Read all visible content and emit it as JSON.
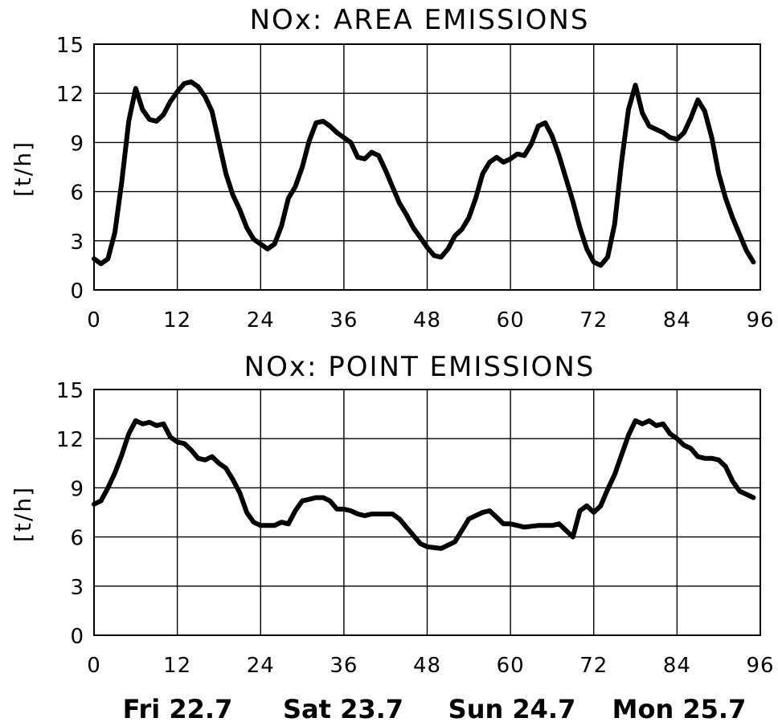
{
  "chart_data": [
    {
      "type": "line",
      "title": "NOx: AREA EMISSIONS",
      "xlabel": "",
      "ylabel": "[t/h]",
      "xlim": [
        0,
        96
      ],
      "ylim": [
        0,
        15
      ],
      "xticks": [
        "0",
        "12",
        "24",
        "36",
        "48",
        "60",
        "72",
        "84",
        "96"
      ],
      "yticks": [
        "0",
        "3",
        "6",
        "9",
        "12",
        "15"
      ],
      "grid": true,
      "series": [
        {
          "x": [
            0,
            1,
            2,
            3,
            4,
            5,
            6,
            7,
            8,
            9,
            10,
            11,
            12,
            13,
            14,
            15,
            16,
            17,
            18,
            19,
            20,
            21,
            22,
            23,
            24,
            25,
            26,
            27,
            28,
            29,
            30,
            31,
            32,
            33,
            34,
            35,
            36,
            37,
            38,
            39,
            40,
            41,
            42,
            43,
            44,
            45,
            46,
            47,
            48,
            49,
            50,
            51,
            52,
            53,
            54,
            55,
            56,
            57,
            58,
            59,
            60,
            61,
            62,
            63,
            64,
            65,
            66,
            67,
            68,
            69,
            70,
            71,
            72,
            73,
            74,
            75,
            76,
            77,
            78,
            79,
            80,
            81,
            82,
            83,
            84,
            85,
            86,
            87,
            88,
            89,
            90,
            91,
            92,
            93,
            94,
            95
          ],
          "y": [
            1.9,
            1.6,
            1.9,
            3.5,
            6.6,
            10.3,
            12.3,
            11.0,
            10.4,
            10.3,
            10.7,
            11.5,
            12.1,
            12.6,
            12.7,
            12.4,
            11.8,
            10.9,
            9.0,
            7.1,
            5.8,
            4.9,
            3.8,
            3.1,
            2.8,
            2.5,
            2.8,
            3.9,
            5.6,
            6.3,
            7.5,
            9.1,
            10.2,
            10.3,
            10.0,
            9.6,
            9.3,
            9.0,
            8.1,
            8.0,
            8.4,
            8.2,
            7.3,
            6.3,
            5.3,
            4.6,
            3.8,
            3.2,
            2.6,
            2.1,
            2.0,
            2.5,
            3.3,
            3.7,
            4.4,
            5.6,
            7.1,
            7.8,
            8.1,
            7.8,
            8.0,
            8.3,
            8.2,
            8.9,
            10.0,
            10.2,
            9.4,
            8.2,
            6.8,
            5.4,
            3.8,
            2.5,
            1.7,
            1.5,
            2.0,
            4.0,
            7.8,
            11.0,
            12.5,
            10.8,
            10.0,
            9.8,
            9.6,
            9.3,
            9.2,
            9.6,
            10.5,
            11.6,
            10.9,
            9.3,
            7.1,
            5.6,
            4.4,
            3.4,
            2.4,
            1.7
          ]
        }
      ]
    },
    {
      "type": "line",
      "title": "NOx: POINT EMISSIONS",
      "xlabel": "",
      "ylabel": "[t/h]",
      "xlim": [
        0,
        96
      ],
      "ylim": [
        0,
        15
      ],
      "xticks": [
        "0",
        "12",
        "24",
        "36",
        "48",
        "60",
        "72",
        "84",
        "96"
      ],
      "yticks": [
        "0",
        "3",
        "6",
        "9",
        "12",
        "15"
      ],
      "grid": true,
      "series": [
        {
          "x": [
            0,
            1,
            2,
            3,
            4,
            5,
            6,
            7,
            8,
            9,
            10,
            11,
            12,
            13,
            14,
            15,
            16,
            17,
            18,
            19,
            20,
            21,
            22,
            23,
            24,
            25,
            26,
            27,
            28,
            29,
            30,
            31,
            32,
            33,
            34,
            35,
            36,
            37,
            38,
            39,
            40,
            41,
            42,
            43,
            44,
            45,
            46,
            47,
            48,
            49,
            50,
            51,
            52,
            53,
            54,
            55,
            56,
            57,
            58,
            59,
            60,
            61,
            62,
            63,
            64,
            65,
            66,
            67,
            68,
            69,
            70,
            71,
            72,
            73,
            74,
            75,
            76,
            77,
            78,
            79,
            80,
            81,
            82,
            83,
            84,
            85,
            86,
            87,
            88,
            89,
            90,
            91,
            92,
            93,
            94,
            95
          ],
          "y": [
            8.0,
            8.2,
            9.0,
            9.9,
            11.0,
            12.3,
            13.1,
            12.9,
            13.0,
            12.8,
            12.9,
            12.1,
            11.8,
            11.7,
            11.3,
            10.8,
            10.7,
            10.9,
            10.5,
            10.2,
            9.5,
            8.7,
            7.5,
            6.9,
            6.7,
            6.7,
            6.7,
            6.9,
            6.8,
            7.6,
            8.2,
            8.3,
            8.4,
            8.4,
            8.2,
            7.7,
            7.7,
            7.6,
            7.4,
            7.3,
            7.4,
            7.4,
            7.4,
            7.4,
            7.1,
            6.6,
            6.1,
            5.6,
            5.4,
            5.35,
            5.3,
            5.5,
            5.7,
            6.4,
            7.1,
            7.3,
            7.5,
            7.6,
            7.2,
            6.8,
            6.8,
            6.7,
            6.6,
            6.65,
            6.7,
            6.7,
            6.7,
            6.8,
            6.4,
            6.0,
            7.6,
            7.9,
            7.5,
            7.9,
            8.9,
            9.8,
            11.0,
            12.2,
            13.1,
            12.9,
            13.1,
            12.8,
            12.9,
            12.3,
            12.0,
            11.6,
            11.4,
            10.9,
            10.8,
            10.8,
            10.7,
            10.3,
            9.4,
            8.8,
            8.6,
            8.4
          ]
        }
      ]
    }
  ],
  "day_labels": [
    "Fri 22.7",
    "Sat 23.7",
    "Sun 24.7",
    "Mon 25.7"
  ]
}
